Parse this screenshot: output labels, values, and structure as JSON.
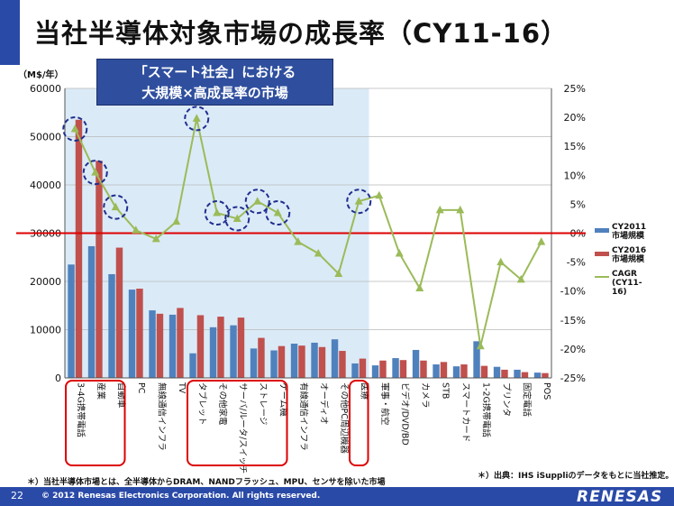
{
  "header": {
    "title": "当社半導体対象市場の成長率（CY11-16）",
    "callout_line1": "「スマート社会」における",
    "callout_line2": "大規模×高成長率の市場"
  },
  "footer": {
    "note_left": "＊）当社半導体市場とは、全半導体からDRAM、NANDフラッシュ、MPU、センサを除いた市場",
    "note_right": "＊）出典：IHS iSuppliのデータをもとに当社推定。",
    "page_number": "22",
    "copyright": "© 2012 Renesas Electronics Corporation. All rights reserved.",
    "logo": "RENESAS"
  },
  "colors": {
    "accent": "#2a4aa8",
    "cy2011": "#4f81bd",
    "cy2016": "#c0504d",
    "cagr": "#9bbb59",
    "threshold": "#dd0000",
    "highlight_bg": "#dbeaf7",
    "circle": "#1f2f8f",
    "box": "#dd0000"
  },
  "chart_data": {
    "type": "bar",
    "left_axis_unit": "（M$/年）",
    "y_left_ticks": [
      "0",
      "10000",
      "20000",
      "30000",
      "40000",
      "50000",
      "60000"
    ],
    "y_right_ticks": [
      "-25%",
      "-20%",
      "-15%",
      "-10%",
      "-5%",
      "0%",
      "5%",
      "10%",
      "15%",
      "20%",
      "25%"
    ],
    "ylim_left": [
      0,
      60000
    ],
    "ylim_right": [
      -25,
      25
    ],
    "threshold_value": 30000,
    "categories": [
      "3-4G携帯電話",
      "産業",
      "自動車",
      "PC",
      "無線通信インフラ",
      "TV",
      "タブレット",
      "その他家電",
      "サーバ/ルータ/スイッチ",
      "ストレージ",
      "ゲーム機",
      "有線通信インフラ",
      "オーディオ",
      "その他PC周辺機器",
      "医療",
      "軍事・航空",
      "ビデオ/DVD/BD",
      "カメラ",
      "STB",
      "スマートカード",
      "1-2G携帯電話",
      "プリンタ",
      "固定電話",
      "POS"
    ],
    "series": [
      {
        "name": "CY2011\n市場規模",
        "values": [
          23500,
          27300,
          21500,
          18300,
          14000,
          13100,
          5100,
          10500,
          10900,
          6100,
          5700,
          7100,
          7300,
          8000,
          3000,
          2600,
          4100,
          5800,
          2800,
          2400,
          7600,
          2300,
          1700,
          1100
        ]
      },
      {
        "name": "CY2016\n市場規模",
        "values": [
          53500,
          45000,
          27000,
          18500,
          13300,
          14500,
          13000,
          12700,
          12500,
          8300,
          6600,
          6700,
          6400,
          5600,
          4000,
          3600,
          3700,
          3600,
          3300,
          2800,
          2500,
          1700,
          1200,
          1000
        ]
      },
      {
        "name": "CAGR\n(CY11-16)",
        "values": [
          18,
          10.5,
          4.5,
          0.5,
          -1,
          2,
          19.8,
          3.5,
          2.5,
          5.5,
          3.5,
          -1.5,
          -3.5,
          -7,
          5.5,
          6.5,
          -3.5,
          -9.5,
          4,
          4,
          -19.5,
          -5,
          -8,
          -1.5
        ]
      }
    ],
    "highlighted_circles": [
      0,
      1,
      2,
      6,
      7,
      8,
      9,
      10,
      14
    ],
    "boxed_groups": [
      [
        0,
        2
      ],
      [
        6,
        10
      ],
      [
        14,
        14
      ]
    ],
    "shaded_range": [
      0,
      14
    ],
    "legend": "right"
  }
}
